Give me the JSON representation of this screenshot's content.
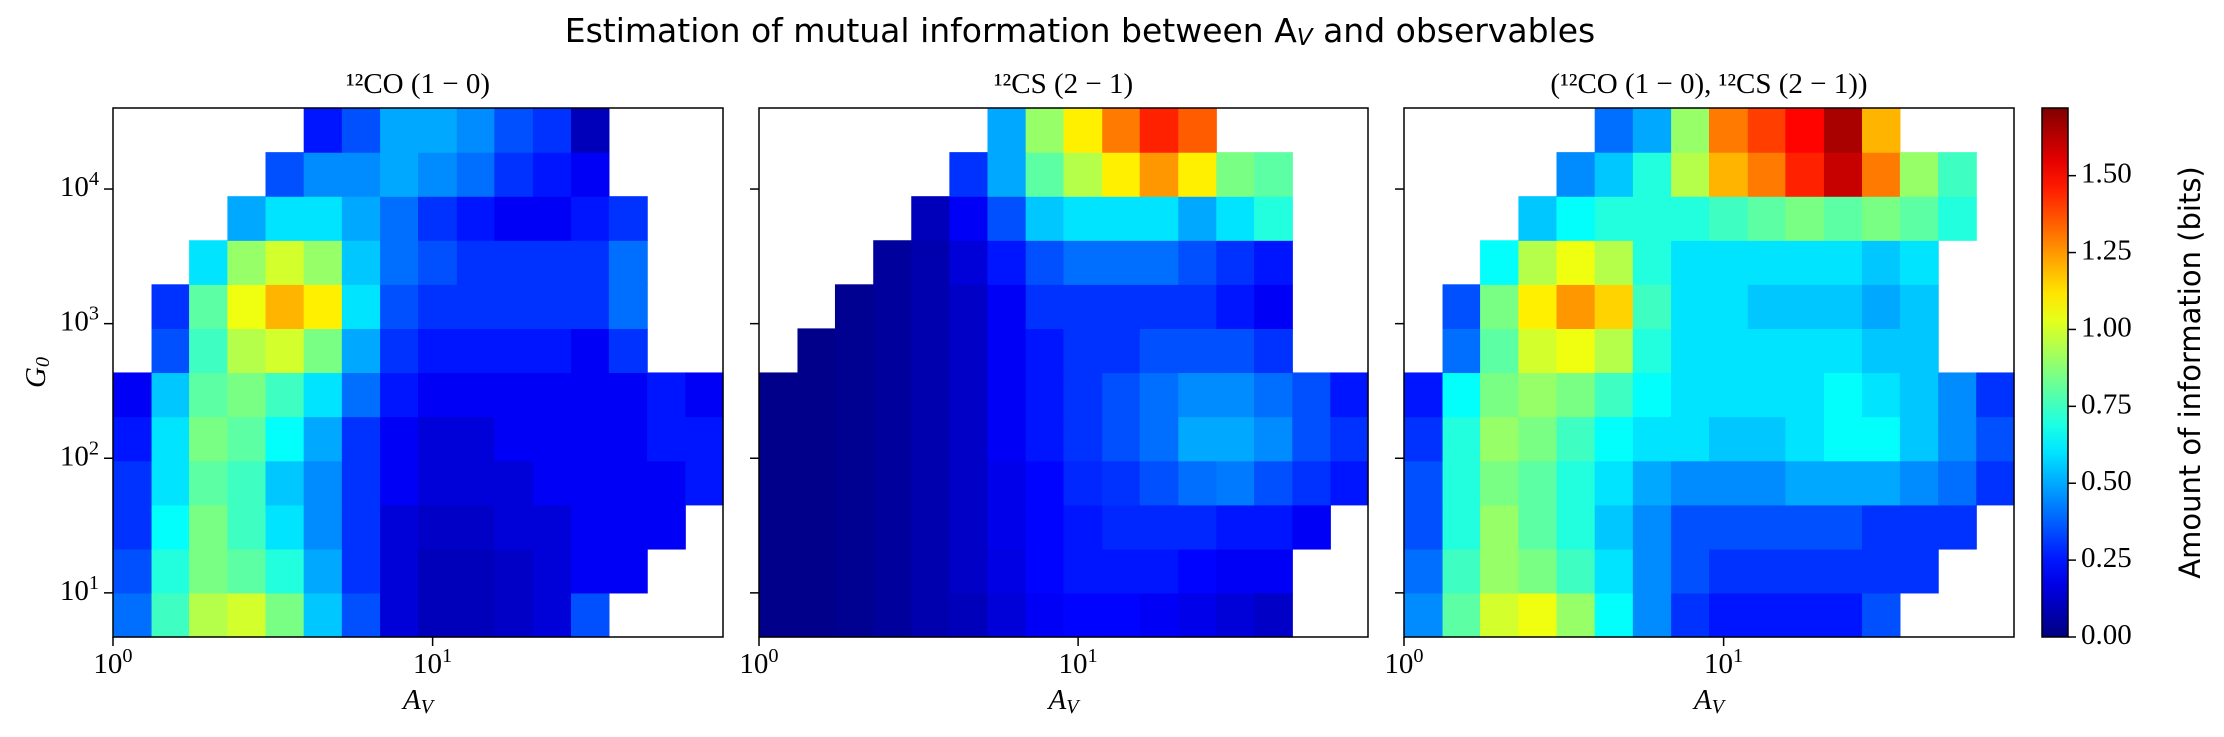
{
  "title": "Estimation of mutual information between A_V and observables",
  "chart_data": [
    {
      "type": "heatmap",
      "title": "¹²CO (1 − 0)",
      "xlabel": "A_V",
      "ylabel": "G_0",
      "xscale": "log",
      "yscale": "log",
      "colormap": "jet",
      "xlim": [
        1,
        81
      ],
      "ylim": [
        4.7,
        40000
      ],
      "xticks": [
        {
          "value": 1,
          "label": "10^0"
        },
        {
          "value": 10,
          "label": "10^1"
        }
      ],
      "yticks": [
        {
          "value": 10,
          "label": "10^1"
        },
        {
          "value": 100,
          "label": "10^2"
        },
        {
          "value": 1000,
          "label": "10^3"
        },
        {
          "value": 10000,
          "label": "10^4"
        }
      ],
      "xbins": [
        1,
        1.32,
        1.73,
        2.28,
        3.0,
        3.95,
        5.2,
        6.85,
        9.0,
        11.9,
        15.6,
        20.6,
        27.1,
        35.6,
        46.9,
        61.7,
        81
      ],
      "ybins": [
        4.7,
        10.0,
        21.2,
        45.1,
        95.9,
        204,
        434,
        922,
        1960,
        4165,
        8850,
        18800,
        40000
      ],
      "values": [
        [
          0.4,
          0.75,
          0.95,
          1.0,
          0.85,
          0.55,
          0.35,
          0.15,
          0.1,
          0.1,
          0.12,
          0.15,
          0.35,
          null,
          null,
          null
        ],
        [
          0.35,
          0.7,
          0.85,
          0.8,
          0.7,
          0.5,
          0.3,
          0.15,
          0.1,
          0.1,
          0.12,
          0.15,
          0.2,
          0.2,
          null,
          null
        ],
        [
          0.3,
          0.65,
          0.85,
          0.75,
          0.6,
          0.45,
          0.3,
          0.15,
          0.12,
          0.12,
          0.15,
          0.15,
          0.2,
          0.2,
          0.2,
          null
        ],
        [
          0.3,
          0.6,
          0.8,
          0.75,
          0.55,
          0.45,
          0.3,
          0.2,
          0.15,
          0.15,
          0.15,
          0.2,
          0.2,
          0.2,
          0.2,
          0.25
        ],
        [
          0.25,
          0.6,
          0.85,
          0.8,
          0.65,
          0.5,
          0.3,
          0.2,
          0.15,
          0.15,
          0.2,
          0.2,
          0.2,
          0.2,
          0.25,
          0.25
        ],
        [
          0.2,
          0.55,
          0.8,
          0.85,
          0.75,
          0.6,
          0.4,
          0.25,
          0.2,
          0.2,
          0.2,
          0.2,
          0.2,
          0.2,
          0.25,
          0.2
        ],
        [
          null,
          0.35,
          0.75,
          0.95,
          1.0,
          0.85,
          0.5,
          0.3,
          0.25,
          0.25,
          0.25,
          0.25,
          0.2,
          0.3,
          null,
          null
        ],
        [
          null,
          0.3,
          0.8,
          1.05,
          1.2,
          1.1,
          0.6,
          0.35,
          0.3,
          0.3,
          0.3,
          0.3,
          0.3,
          0.4,
          null,
          null
        ],
        [
          null,
          null,
          0.6,
          0.9,
          1.0,
          0.9,
          0.55,
          0.4,
          0.35,
          0.3,
          0.3,
          0.3,
          0.3,
          0.4,
          null,
          null
        ],
        [
          null,
          null,
          null,
          0.5,
          0.6,
          0.6,
          0.5,
          0.4,
          0.3,
          0.25,
          0.2,
          0.2,
          0.25,
          0.3,
          null,
          null
        ],
        [
          null,
          null,
          null,
          null,
          0.35,
          0.45,
          0.45,
          0.5,
          0.45,
          0.4,
          0.3,
          0.25,
          0.2,
          null,
          null,
          null
        ],
        [
          null,
          null,
          null,
          null,
          null,
          0.25,
          0.35,
          0.5,
          0.5,
          0.45,
          0.35,
          0.3,
          0.1,
          null,
          null,
          null
        ]
      ]
    },
    {
      "type": "heatmap",
      "title": "¹²CS (2 − 1)",
      "xlabel": "A_V",
      "xscale": "log",
      "yscale": "log",
      "colormap": "jet",
      "sharey": true,
      "xlim": [
        1,
        81
      ],
      "ylim": [
        4.7,
        40000
      ],
      "xticks": [
        {
          "value": 1,
          "label": "10^0"
        },
        {
          "value": 10,
          "label": "10^1"
        }
      ],
      "xbins": [
        1,
        1.32,
        1.73,
        2.28,
        3.0,
        3.95,
        5.2,
        6.85,
        9.0,
        11.9,
        15.6,
        20.6,
        27.1,
        35.6,
        46.9,
        61.7,
        81
      ],
      "ybins": [
        4.7,
        10.0,
        21.2,
        45.1,
        95.9,
        204,
        434,
        922,
        1960,
        4165,
        8850,
        18800,
        40000
      ],
      "values": [
        [
          0.02,
          0.02,
          0.03,
          0.05,
          0.08,
          0.1,
          0.15,
          0.2,
          0.22,
          0.22,
          0.2,
          0.18,
          0.15,
          0.12,
          null,
          null
        ],
        [
          0.02,
          0.02,
          0.03,
          0.05,
          0.08,
          0.12,
          0.17,
          0.22,
          0.25,
          0.25,
          0.25,
          0.22,
          0.2,
          0.2,
          null,
          null
        ],
        [
          0.02,
          0.02,
          0.03,
          0.05,
          0.08,
          0.12,
          0.18,
          0.22,
          0.25,
          0.28,
          0.28,
          0.28,
          0.25,
          0.25,
          0.2,
          null
        ],
        [
          0.02,
          0.02,
          0.03,
          0.05,
          0.08,
          0.12,
          0.18,
          0.22,
          0.28,
          0.3,
          0.35,
          0.4,
          0.42,
          0.35,
          0.3,
          0.25
        ],
        [
          0.02,
          0.02,
          0.03,
          0.05,
          0.08,
          0.12,
          0.2,
          0.25,
          0.3,
          0.35,
          0.4,
          0.5,
          0.5,
          0.45,
          0.35,
          0.3
        ],
        [
          0.02,
          0.02,
          0.03,
          0.05,
          0.08,
          0.12,
          0.2,
          0.25,
          0.3,
          0.35,
          0.4,
          0.45,
          0.45,
          0.4,
          0.35,
          0.25
        ],
        [
          null,
          0.02,
          0.03,
          0.05,
          0.08,
          0.12,
          0.2,
          0.25,
          0.3,
          0.3,
          0.35,
          0.35,
          0.35,
          0.3,
          null,
          null
        ],
        [
          null,
          null,
          0.03,
          0.05,
          0.08,
          0.12,
          0.2,
          0.3,
          0.3,
          0.3,
          0.3,
          0.3,
          0.25,
          0.2,
          null,
          null
        ],
        [
          null,
          null,
          null,
          0.05,
          0.08,
          0.15,
          0.25,
          0.35,
          0.4,
          0.4,
          0.4,
          0.35,
          0.3,
          0.25,
          null,
          null
        ],
        [
          null,
          null,
          null,
          null,
          0.1,
          0.2,
          0.35,
          0.55,
          0.6,
          0.6,
          0.6,
          0.5,
          0.6,
          0.7,
          null,
          null
        ],
        [
          null,
          null,
          null,
          null,
          null,
          0.3,
          0.5,
          0.8,
          0.95,
          1.1,
          1.25,
          1.1,
          0.85,
          0.8,
          null,
          null
        ],
        [
          null,
          null,
          null,
          null,
          null,
          null,
          0.5,
          0.9,
          1.1,
          1.3,
          1.45,
          1.35,
          null,
          null,
          null,
          null
        ]
      ]
    },
    {
      "type": "heatmap",
      "title": "(¹²CO (1 − 0), ¹²CS (2 − 1))",
      "xlabel": "A_V",
      "xscale": "log",
      "yscale": "log",
      "colormap": "jet",
      "sharey": true,
      "xlim": [
        1,
        81
      ],
      "ylim": [
        4.7,
        40000
      ],
      "xticks": [
        {
          "value": 1,
          "label": "10^0"
        },
        {
          "value": 10,
          "label": "10^1"
        }
      ],
      "xbins": [
        1,
        1.32,
        1.73,
        2.28,
        3.0,
        3.95,
        5.2,
        6.85,
        9.0,
        11.9,
        15.6,
        20.6,
        27.1,
        35.6,
        46.9,
        61.7,
        81
      ],
      "ybins": [
        4.7,
        10.0,
        21.2,
        45.1,
        95.9,
        204,
        434,
        922,
        1960,
        4165,
        8850,
        18800,
        40000
      ],
      "values": [
        [
          0.45,
          0.8,
          1.0,
          1.05,
          0.9,
          0.65,
          0.45,
          0.3,
          0.25,
          0.25,
          0.25,
          0.25,
          0.35,
          null,
          null,
          null
        ],
        [
          0.4,
          0.75,
          0.9,
          0.85,
          0.75,
          0.6,
          0.45,
          0.35,
          0.3,
          0.3,
          0.3,
          0.3,
          0.3,
          0.3,
          null,
          null
        ],
        [
          0.35,
          0.7,
          0.9,
          0.8,
          0.7,
          0.55,
          0.45,
          0.35,
          0.35,
          0.35,
          0.35,
          0.35,
          0.3,
          0.3,
          0.3,
          null
        ],
        [
          0.35,
          0.7,
          0.85,
          0.8,
          0.7,
          0.6,
          0.5,
          0.45,
          0.45,
          0.45,
          0.5,
          0.5,
          0.5,
          0.45,
          0.4,
          0.3
        ],
        [
          0.3,
          0.7,
          0.9,
          0.85,
          0.75,
          0.65,
          0.6,
          0.6,
          0.55,
          0.55,
          0.6,
          0.65,
          0.65,
          0.55,
          0.45,
          0.35
        ],
        [
          0.25,
          0.65,
          0.85,
          0.9,
          0.85,
          0.75,
          0.65,
          0.6,
          0.6,
          0.6,
          0.6,
          0.65,
          0.6,
          0.55,
          0.45,
          0.3
        ],
        [
          null,
          0.4,
          0.8,
          1.0,
          1.05,
          0.95,
          0.7,
          0.6,
          0.6,
          0.6,
          0.6,
          0.6,
          0.55,
          0.55,
          null,
          null
        ],
        [
          null,
          0.35,
          0.85,
          1.1,
          1.25,
          1.15,
          0.75,
          0.6,
          0.6,
          0.55,
          0.55,
          0.55,
          0.5,
          0.55,
          null,
          null
        ],
        [
          null,
          null,
          0.65,
          0.95,
          1.05,
          0.95,
          0.7,
          0.6,
          0.6,
          0.6,
          0.6,
          0.6,
          0.55,
          0.6,
          null,
          null
        ],
        [
          null,
          null,
          null,
          0.55,
          0.65,
          0.7,
          0.7,
          0.7,
          0.75,
          0.8,
          0.85,
          0.8,
          0.85,
          0.8,
          0.7,
          null
        ],
        [
          null,
          null,
          null,
          null,
          0.45,
          0.55,
          0.7,
          0.95,
          1.2,
          1.3,
          1.45,
          1.6,
          1.3,
          0.9,
          0.75,
          null
        ],
        [
          null,
          null,
          null,
          null,
          null,
          0.4,
          0.5,
          0.9,
          1.3,
          1.4,
          1.5,
          1.65,
          1.2,
          null,
          null,
          null
        ]
      ],
      "zlabel": "Amount of information (bits)",
      "zlim": [
        0,
        1.72
      ],
      "zticks": [
        {
          "value": 0,
          "label": "0.00"
        },
        {
          "value": 0.25,
          "label": "0.25"
        },
        {
          "value": 0.5,
          "label": "0.50"
        },
        {
          "value": 0.75,
          "label": "0.75"
        },
        {
          "value": 1,
          "label": "1.00"
        },
        {
          "value": 1.25,
          "label": "1.25"
        },
        {
          "value": 1.5,
          "label": "1.50"
        }
      ]
    }
  ]
}
